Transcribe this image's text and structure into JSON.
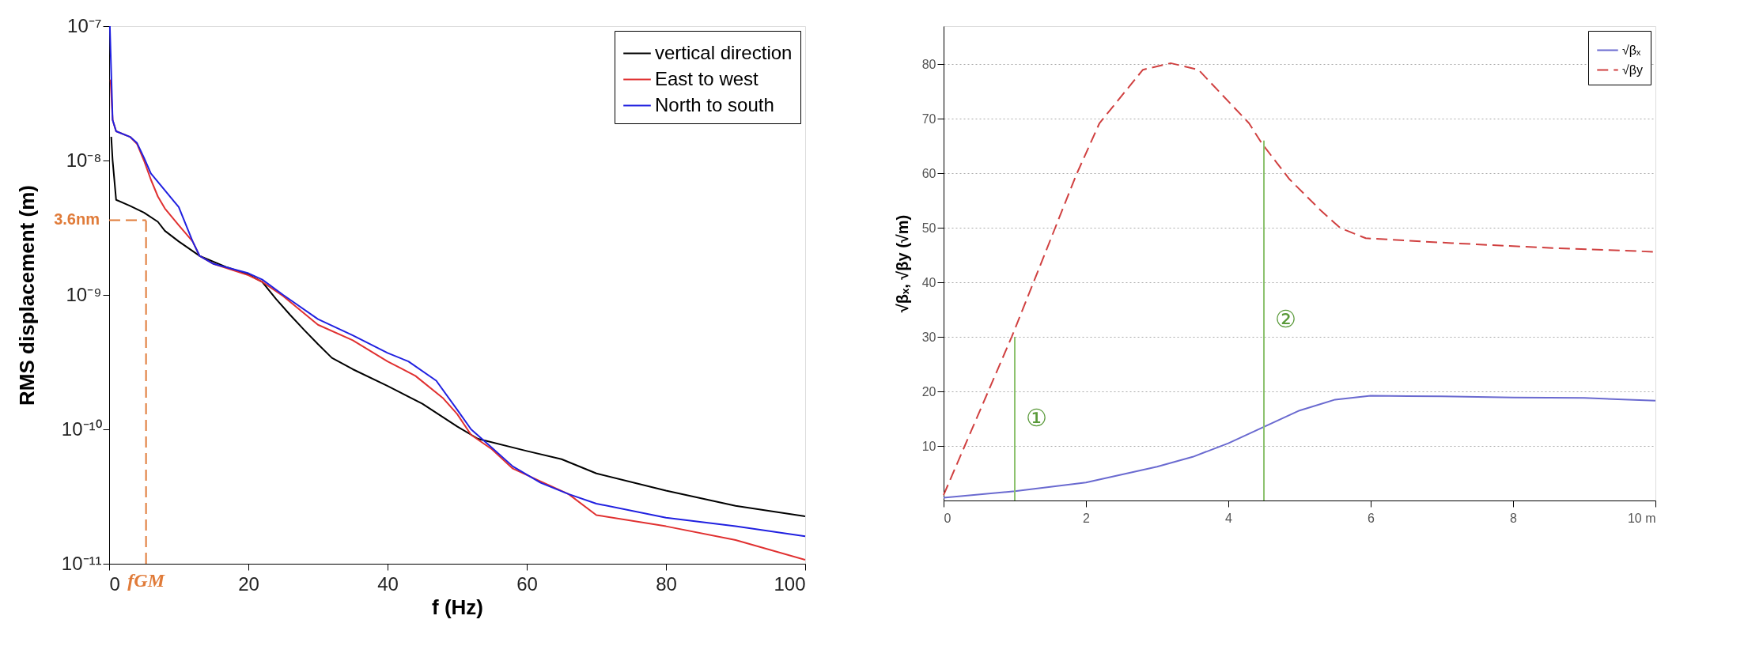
{
  "chart_data": [
    {
      "type": "line",
      "xlabel": "f (Hz)",
      "ylabel": "RMS displacement (m)",
      "log": "y",
      "grid": false,
      "legend": "top right",
      "xlim": [
        0,
        100
      ],
      "xticks": [
        0,
        20,
        40,
        60,
        80,
        100
      ],
      "ylim": [
        1e-11,
        1e-07
      ],
      "yticks": [
        {
          "value": 1e-11,
          "label": "10⁻¹¹"
        },
        {
          "value": 1e-10,
          "label": "10⁻¹⁰"
        },
        {
          "value": 1e-09,
          "label": "10⁻⁹"
        },
        {
          "value": 1e-08,
          "label": "10⁻⁸"
        },
        {
          "value": 1e-07,
          "label": "10⁻⁷"
        }
      ],
      "ref_lines": [
        {
          "axis": "y",
          "value": 3.6e-09,
          "label": "3.6nm",
          "color": "#e07b39",
          "line_style": "dashed"
        },
        {
          "axis": "x",
          "value": 5.3,
          "label": "fGM",
          "color": "#e07b39",
          "line_style": "dashed"
        }
      ],
      "series": [
        {
          "name": "vertical direction",
          "color": "#000000",
          "x": [
            0.3,
            0.5,
            1,
            3,
            5,
            7,
            8,
            10,
            13,
            17,
            20,
            22,
            24,
            26,
            28,
            30,
            32,
            35,
            40,
            45,
            50,
            53,
            60,
            65,
            70,
            80,
            90,
            100
          ],
          "values": [
            1.5e-08,
            1e-08,
            5.1e-09,
            4.6e-09,
            4.1e-09,
            3.5e-09,
            3e-09,
            2.5e-09,
            1.95e-09,
            1.6e-09,
            1.42e-09,
            1.25e-09,
            9.3e-10,
            7.1e-10,
            5.5e-10,
            4.3e-10,
            3.4e-10,
            2.8e-10,
            2.1e-10,
            1.55e-10,
            1.05e-10,
            8.5e-11,
            6.9e-11,
            6e-11,
            4.7e-11,
            3.5e-11,
            2.7e-11,
            2.25e-11
          ]
        },
        {
          "name": "East to west",
          "color": "#e03030",
          "x": [
            0.2,
            0.5,
            1,
            3,
            4,
            5,
            6,
            7,
            8,
            10,
            12,
            13,
            15,
            20,
            22,
            25,
            30,
            35,
            40,
            44,
            48,
            50,
            52,
            55,
            58,
            62,
            66,
            70,
            80,
            90,
            100
          ],
          "values": [
            4e-08,
            2e-08,
            1.65e-08,
            1.5e-08,
            1.33e-08,
            1e-08,
            7.2e-09,
            5.4e-09,
            4.4e-09,
            3.3e-09,
            2.5e-09,
            1.95e-09,
            1.7e-09,
            1.4e-09,
            1.25e-09,
            9.8e-10,
            6e-10,
            4.6e-10,
            3.2e-10,
            2.5e-10,
            1.7e-10,
            1.3e-10,
            9.1e-11,
            7.1e-11,
            5.1e-11,
            4.1e-11,
            3.3e-11,
            2.3e-11,
            1.9e-11,
            1.5e-11,
            1.07e-11
          ]
        },
        {
          "name": "North to south",
          "color": "#2020e0",
          "x": [
            0.1,
            0.5,
            1,
            3,
            4,
            5,
            6,
            8,
            10,
            12,
            13,
            15,
            20,
            22,
            25,
            30,
            35,
            40,
            43,
            47,
            50,
            52,
            54,
            58,
            62,
            66,
            70,
            80,
            90,
            100
          ],
          "values": [
            1e-07,
            2e-08,
            1.65e-08,
            1.5e-08,
            1.35e-08,
            1.05e-08,
            8e-09,
            6e-09,
            4.5e-09,
            2.5e-09,
            1.95e-09,
            1.7e-09,
            1.45e-09,
            1.3e-09,
            1e-09,
            6.6e-10,
            5e-10,
            3.7e-10,
            3.2e-10,
            2.3e-10,
            1.4e-10,
            1e-10,
            8.1e-11,
            5.3e-11,
            4e-11,
            3.3e-11,
            2.8e-11,
            2.2e-11,
            1.9e-11,
            1.6e-11
          ]
        }
      ]
    },
    {
      "type": "line",
      "ylabel": "√βₓ, √βy (√m)",
      "grid": "y",
      "legend": "top right",
      "xlim": [
        0,
        10
      ],
      "xticks": [
        0,
        2,
        4,
        6,
        8,
        {
          "value": 10,
          "label": "10 m"
        }
      ],
      "ylim": [
        0,
        87
      ],
      "yticks": [
        10,
        20,
        30,
        40,
        50,
        60,
        70,
        80
      ],
      "annotations": [
        "①",
        "②"
      ],
      "series": [
        {
          "name": "√βₓ",
          "color": "#6a6ad0",
          "line_style": "solid",
          "x": [
            0,
            1,
            2,
            3,
            3.5,
            4,
            4.5,
            5,
            5.5,
            6,
            7,
            8,
            9,
            10
          ],
          "values": [
            0.5,
            1.7,
            3.3,
            6.2,
            8,
            10.5,
            13.5,
            16.5,
            18.5,
            19.2,
            19.1,
            18.9,
            18.8,
            18.3
          ]
        },
        {
          "name": "√βy",
          "color": "#d04040",
          "line_style": "dashed",
          "x": [
            0,
            0.96,
            1.87,
            2.19,
            2.8,
            3.19,
            3.58,
            4.29,
            4.47,
            4.86,
            5.29,
            5.57,
            5.93,
            7.14,
            8.56,
            10
          ],
          "values": [
            1,
            30.1,
            59.9,
            69.2,
            79,
            80.2,
            79,
            69.2,
            65.5,
            58.9,
            53.3,
            50,
            48.1,
            47.2,
            46.3,
            45.6
          ]
        },
        {
          "color": "#8dc26f",
          "line_style": "solid",
          "x": [
            1,
            1
          ],
          "values": [
            0,
            30
          ]
        },
        {
          "color": "#8dc26f",
          "line_style": "solid",
          "x": [
            4.5,
            4.5
          ],
          "values": [
            0,
            66
          ]
        }
      ]
    }
  ]
}
